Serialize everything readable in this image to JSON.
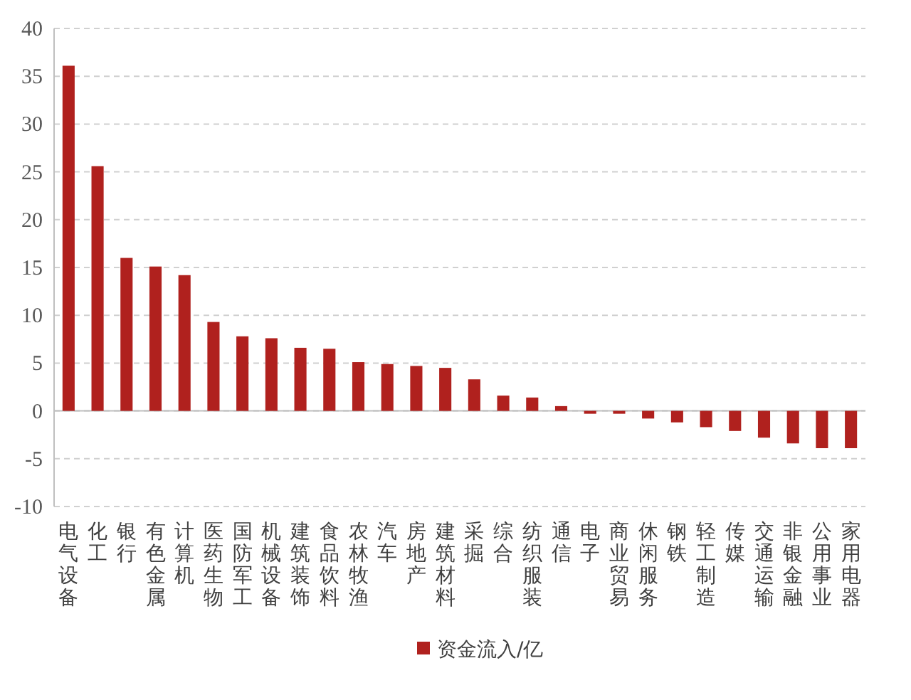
{
  "chart_data": {
    "type": "bar",
    "categories": [
      "电气设备",
      "化工",
      "银行",
      "有色金属",
      "计算机",
      "医药生物",
      "国防军工",
      "机械设备",
      "建筑装饰",
      "食品饮料",
      "农林牧渔",
      "汽车",
      "房地产",
      "建筑材料",
      "采掘",
      "综合",
      "纺织服装",
      "通信",
      "电子",
      "商业贸易",
      "休闲服务",
      "钢铁",
      "轻工制造",
      "传媒",
      "交通运输",
      "非银金融",
      "公用事业",
      "家用电器"
    ],
    "series": [
      {
        "name": "资金流入/亿",
        "color": "#b0211e",
        "values": [
          36.1,
          25.6,
          16.0,
          15.1,
          14.2,
          9.3,
          7.8,
          7.6,
          6.6,
          6.5,
          5.1,
          4.9,
          4.7,
          4.5,
          3.3,
          1.6,
          1.4,
          0.5,
          -0.3,
          -0.3,
          -0.8,
          -1.2,
          -1.7,
          -2.1,
          -2.8,
          -3.4,
          -3.9,
          -3.9
        ]
      }
    ],
    "ylim": [
      -10,
      40
    ],
    "yticks": [
      -10,
      -5,
      0,
      5,
      10,
      15,
      20,
      25,
      30,
      35,
      40
    ],
    "grid": "y",
    "legend": "bottom"
  }
}
